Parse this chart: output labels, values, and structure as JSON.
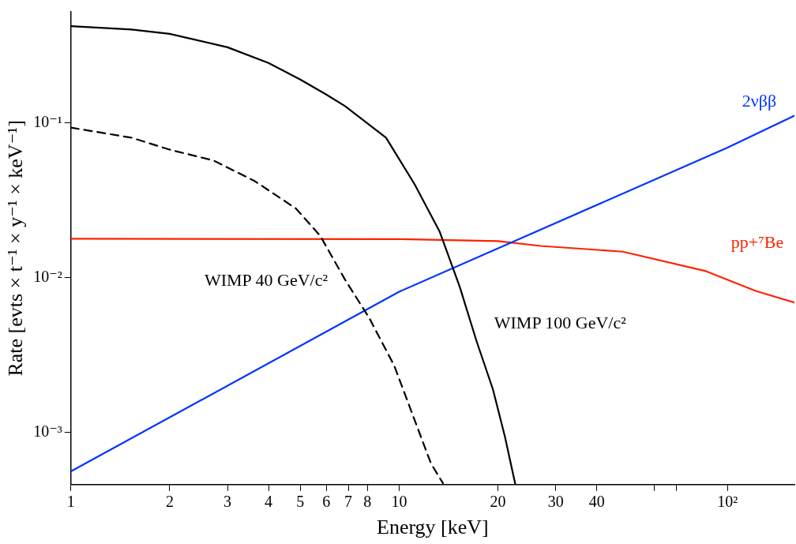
{
  "chart_data": {
    "type": "line",
    "xlabel": "Energy [keV]",
    "ylabel": "Rate [evts × t⁻¹ × y⁻¹ × keV⁻¹]",
    "log": "xy",
    "grid": false,
    "legend": false,
    "marker": "none",
    "xlim": [
      1,
      160
    ],
    "ylim": [
      0.00046,
      0.52
    ],
    "xticks": [
      1,
      2,
      3,
      4,
      5,
      6,
      7,
      8,
      10,
      20,
      30,
      40,
      {
        "value": 60,
        "label": null
      },
      {
        "value": 70,
        "label": null
      },
      {
        "value": 100,
        "label": "10²"
      }
    ],
    "yticks": [
      {
        "value": 0.001,
        "label": "10⁻³"
      },
      {
        "value": 0.01,
        "label": "10⁻²"
      },
      {
        "value": 0.1,
        "label": "10⁻¹"
      }
    ],
    "series": [
      {
        "name": "WIMP 100 GeV/c²",
        "color": "#000000",
        "line_style": "solid",
        "x": [
          1,
          1.53,
          2,
          3,
          4,
          5,
          6,
          6.84,
          9.12,
          11.15,
          13.3,
          15.3,
          17.2,
          19.3,
          21.0,
          22.6
        ],
        "values": [
          0.42,
          0.4,
          0.375,
          0.307,
          0.243,
          0.19,
          0.152,
          0.128,
          0.08,
          0.04,
          0.0197,
          0.0087,
          0.0039,
          0.0019,
          0.00094,
          0.00046
        ]
      },
      {
        "name": "WIMP 40 GeV/c²",
        "color": "#000000",
        "line_style": "dashed",
        "x": [
          1,
          1.53,
          2,
          2.72,
          3.63,
          4.84,
          5.75,
          6.84,
          8.1,
          9.66,
          11.15,
          12.5,
          13.6
        ],
        "values": [
          0.093,
          0.08,
          0.067,
          0.057,
          0.042,
          0.028,
          0.0186,
          0.0097,
          0.0055,
          0.0027,
          0.0012,
          0.00063,
          0.00047
        ]
      },
      {
        "name": "2νββ",
        "color": "#0033ff",
        "line_style": "solid",
        "x": [
          1,
          10,
          100,
          160
        ],
        "values": [
          0.00056,
          0.0081,
          0.069,
          0.111
        ]
      },
      {
        "name": "pp+⁷Be",
        "color": "#ff2200",
        "line_style": "solid",
        "x": [
          1,
          10,
          20,
          27,
          48,
          86,
          122,
          160
        ],
        "values": [
          0.0178,
          0.0177,
          0.0172,
          0.016,
          0.0147,
          0.011,
          0.0082,
          0.0069
        ]
      }
    ]
  }
}
